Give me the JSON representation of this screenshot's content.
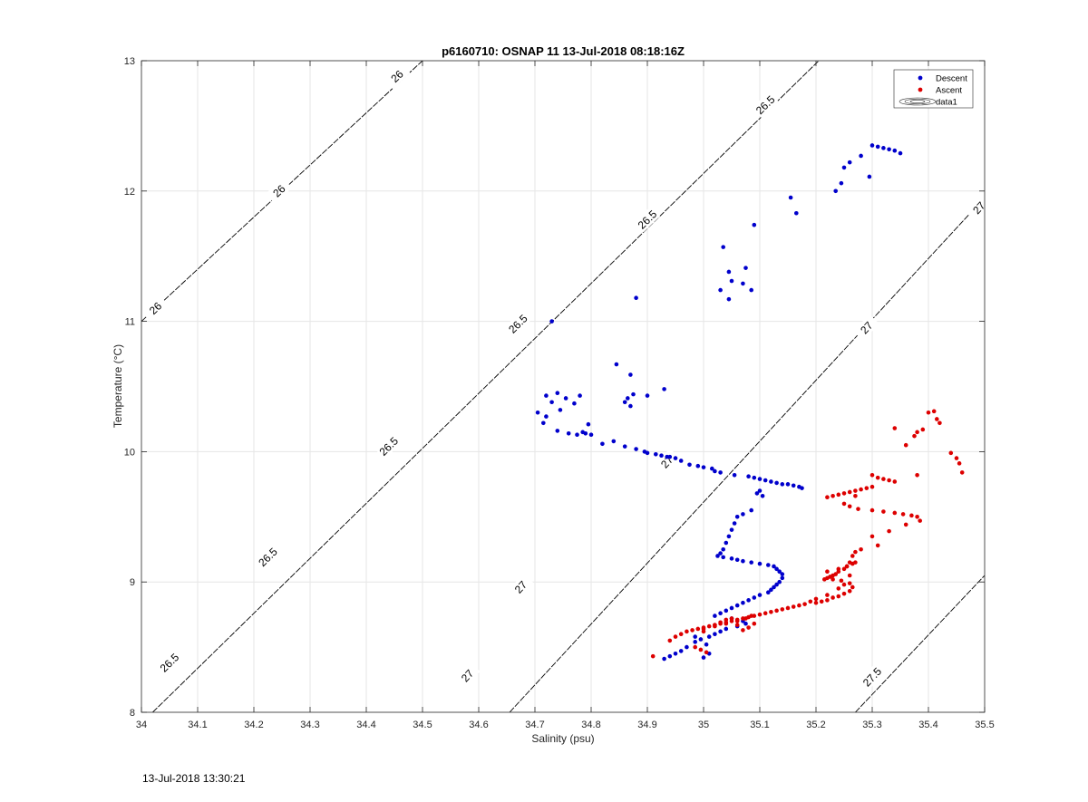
{
  "chart_data": {
    "type": "scatter",
    "title": "p6160710: OSNAP 11 13-Jul-2018 08:18:16Z",
    "xlabel": "Salinity (psu)",
    "ylabel": "Temperature (°C)",
    "xlim": [
      34,
      35.5
    ],
    "ylim": [
      8,
      13
    ],
    "xticks": [
      34,
      34.1,
      34.2,
      34.3,
      34.4,
      34.5,
      34.6,
      34.7,
      34.8,
      34.9,
      35,
      35.1,
      35.2,
      35.3,
      35.4,
      35.5
    ],
    "xtick_labels": [
      "34",
      "34.1",
      "34.2",
      "34.3",
      "34.4",
      "34.5",
      "34.6",
      "34.7",
      "34.8",
      "34.9",
      "35",
      "35.1",
      "35.2",
      "35.3",
      "35.4",
      "35.5"
    ],
    "yticks": [
      8,
      9,
      10,
      11,
      12,
      13
    ],
    "ytick_labels": [
      "8",
      "9",
      "10",
      "11",
      "12",
      "13"
    ],
    "grid": true,
    "legend": {
      "placement": "top-right",
      "entries": [
        "Descent",
        "Ascent",
        "data1"
      ]
    },
    "colors": {
      "descent": "#0000cc",
      "ascent": "#dd0000",
      "contour": "#000000",
      "grid": "#e6e6e6"
    },
    "isopycnals": [
      {
        "label": "26",
        "line": [
          [
            34.0,
            11.0
          ],
          [
            34.5,
            13.0
          ]
        ],
        "label_points": [
          [
            34.455,
            12.88
          ],
          [
            34.245,
            12.0
          ],
          [
            34.025,
            11.1
          ]
        ]
      },
      {
        "label": "26.5",
        "line": [
          [
            34.02,
            8.0
          ],
          [
            35.205,
            13.0
          ]
        ],
        "label_points": [
          [
            35.11,
            12.66
          ],
          [
            34.9,
            11.78
          ],
          [
            34.67,
            10.98
          ],
          [
            34.44,
            10.04
          ],
          [
            34.225,
            9.19
          ],
          [
            34.05,
            8.38
          ]
        ]
      },
      {
        "label": "27",
        "line": [
          [
            34.655,
            8.0
          ],
          [
            35.5,
            11.95
          ]
        ],
        "label_points": [
          [
            35.49,
            11.87
          ],
          [
            35.29,
            10.95
          ],
          [
            34.935,
            9.92
          ],
          [
            34.675,
            8.96
          ],
          [
            34.58,
            8.28
          ]
        ]
      },
      {
        "label": "27.5",
        "line": [
          [
            35.27,
            8.0
          ],
          [
            35.5,
            9.05
          ]
        ],
        "label_points": [
          [
            35.3,
            8.27
          ]
        ]
      }
    ],
    "series": [
      {
        "name": "Descent",
        "x": [
          35.3,
          35.31,
          35.32,
          35.33,
          35.34,
          35.35,
          35.28,
          35.26,
          35.25,
          35.235,
          35.245,
          35.295,
          35.155,
          35.165,
          35.09,
          35.035,
          35.045,
          35.05,
          35.075,
          35.085,
          35.07,
          35.03,
          35.045,
          34.88,
          34.73,
          34.705,
          34.72,
          34.715,
          34.74,
          34.76,
          34.775,
          34.785,
          34.79,
          34.795,
          34.745,
          34.73,
          34.72,
          34.74,
          34.755,
          34.77,
          34.78,
          34.8,
          34.845,
          34.87,
          34.875,
          34.865,
          34.87,
          34.86,
          34.9,
          34.93,
          34.82,
          34.84,
          34.86,
          34.88,
          34.895,
          34.9,
          34.915,
          34.925,
          34.935,
          34.94,
          34.95,
          34.96,
          34.975,
          34.99,
          35.0,
          35.015,
          35.02,
          35.03,
          35.055,
          35.08,
          35.09,
          35.1,
          35.11,
          35.12,
          35.13,
          35.14,
          35.15,
          35.16,
          35.17,
          35.175,
          35.1,
          35.095,
          35.105,
          35.085,
          35.07,
          35.06,
          35.055,
          35.05,
          35.045,
          35.04,
          35.035,
          35.03,
          35.025,
          35.035,
          35.05,
          35.06,
          35.07,
          35.085,
          35.1,
          35.115,
          35.125,
          35.13,
          35.135,
          35.14,
          35.14,
          35.135,
          35.13,
          35.125,
          35.12,
          35.115,
          35.1,
          35.09,
          35.08,
          35.07,
          35.06,
          35.05,
          35.04,
          35.03,
          35.02,
          35.05,
          35.07,
          35.075,
          35.06,
          35.04,
          35.03,
          35.02,
          35.01,
          34.995,
          34.985,
          34.97,
          34.96,
          34.95,
          34.94,
          34.93,
          35.0,
          35.01,
          35.005,
          34.985
        ],
        "y": [
          12.35,
          12.34,
          12.33,
          12.32,
          12.31,
          12.29,
          12.27,
          12.22,
          12.18,
          12.0,
          12.06,
          12.11,
          11.95,
          11.83,
          11.74,
          11.57,
          11.38,
          11.31,
          11.41,
          11.24,
          11.29,
          11.24,
          11.17,
          11.18,
          11.0,
          10.3,
          10.27,
          10.22,
          10.16,
          10.14,
          10.13,
          10.15,
          10.14,
          10.21,
          10.32,
          10.38,
          10.43,
          10.45,
          10.41,
          10.37,
          10.43,
          10.13,
          10.67,
          10.59,
          10.44,
          10.41,
          10.35,
          10.38,
          10.43,
          10.48,
          10.06,
          10.08,
          10.04,
          10.02,
          10.0,
          9.99,
          9.98,
          9.97,
          9.96,
          9.96,
          9.95,
          9.93,
          9.9,
          9.89,
          9.88,
          9.87,
          9.85,
          9.84,
          9.82,
          9.81,
          9.8,
          9.79,
          9.78,
          9.77,
          9.76,
          9.75,
          9.75,
          9.74,
          9.73,
          9.72,
          9.7,
          9.68,
          9.66,
          9.55,
          9.52,
          9.5,
          9.45,
          9.4,
          9.35,
          9.3,
          9.25,
          9.22,
          9.2,
          9.19,
          9.18,
          9.17,
          9.16,
          9.15,
          9.14,
          9.13,
          9.12,
          9.1,
          9.08,
          9.06,
          9.03,
          9.0,
          8.98,
          8.96,
          8.94,
          8.92,
          8.9,
          8.88,
          8.86,
          8.84,
          8.82,
          8.8,
          8.78,
          8.76,
          8.74,
          8.72,
          8.7,
          8.68,
          8.66,
          8.64,
          8.62,
          8.6,
          8.58,
          8.56,
          8.54,
          8.5,
          8.47,
          8.45,
          8.43,
          8.41,
          8.42,
          8.45,
          8.52,
          8.58
        ]
      },
      {
        "name": "Ascent",
        "x": [
          35.4,
          35.41,
          35.415,
          35.42,
          35.39,
          35.38,
          35.375,
          35.36,
          35.34,
          35.44,
          35.45,
          35.455,
          35.46,
          35.38,
          35.3,
          35.31,
          35.32,
          35.33,
          35.34,
          35.22,
          35.23,
          35.24,
          35.25,
          35.26,
          35.27,
          35.28,
          35.29,
          35.3,
          35.27,
          35.25,
          35.26,
          35.275,
          35.3,
          35.32,
          35.34,
          35.355,
          35.37,
          35.38,
          35.385,
          35.36,
          35.33,
          35.3,
          35.31,
          35.28,
          35.27,
          35.265,
          35.26,
          35.255,
          35.25,
          35.24,
          35.235,
          35.23,
          35.225,
          35.22,
          35.215,
          35.23,
          35.245,
          35.26,
          35.265,
          35.26,
          35.25,
          35.24,
          35.23,
          35.22,
          35.21,
          35.2,
          35.22,
          35.24,
          35.255,
          35.265,
          35.27,
          35.26,
          35.25,
          35.24,
          35.22,
          35.2,
          35.19,
          35.18,
          35.17,
          35.16,
          35.15,
          35.14,
          35.13,
          35.12,
          35.11,
          35.1,
          35.09,
          35.08,
          35.07,
          35.06,
          35.05,
          35.04,
          35.03,
          35.02,
          35.01,
          35.0,
          34.99,
          34.98,
          34.97,
          34.96,
          34.95,
          34.94,
          34.91,
          35.0,
          35.02,
          35.04,
          35.06,
          35.075,
          35.085,
          35.09,
          35.08,
          35.07,
          35.06,
          35.05,
          35.04,
          35.03,
          35.02,
          35.0,
          34.985,
          34.995,
          35.005
        ],
        "y": [
          10.3,
          10.31,
          10.25,
          10.22,
          10.17,
          10.15,
          10.12,
          10.05,
          10.18,
          9.99,
          9.95,
          9.91,
          9.84,
          9.82,
          9.82,
          9.8,
          9.79,
          9.78,
          9.77,
          9.65,
          9.66,
          9.67,
          9.68,
          9.69,
          9.7,
          9.71,
          9.72,
          9.73,
          9.66,
          9.6,
          9.58,
          9.56,
          9.55,
          9.54,
          9.53,
          9.52,
          9.51,
          9.5,
          9.47,
          9.44,
          9.39,
          9.35,
          9.28,
          9.25,
          9.23,
          9.2,
          9.15,
          9.12,
          9.1,
          9.08,
          9.06,
          9.05,
          9.04,
          9.03,
          9.02,
          9.02,
          9.01,
          8.99,
          8.96,
          8.93,
          8.91,
          8.89,
          8.88,
          8.86,
          8.85,
          8.84,
          9.08,
          9.1,
          9.12,
          9.14,
          9.15,
          9.05,
          8.98,
          8.95,
          8.9,
          8.87,
          8.85,
          8.83,
          8.82,
          8.81,
          8.8,
          8.79,
          8.78,
          8.77,
          8.76,
          8.75,
          8.74,
          8.73,
          8.72,
          8.71,
          8.7,
          8.69,
          8.68,
          8.67,
          8.66,
          8.65,
          8.64,
          8.63,
          8.62,
          8.6,
          8.58,
          8.55,
          8.43,
          8.64,
          8.66,
          8.68,
          8.7,
          8.72,
          8.74,
          8.68,
          8.65,
          8.63,
          8.67,
          8.72,
          8.71,
          8.69,
          8.67,
          8.62,
          8.5,
          8.48,
          8.46
        ]
      }
    ]
  },
  "footer": {
    "timestamp": "13-Jul-2018 13:30:21"
  }
}
